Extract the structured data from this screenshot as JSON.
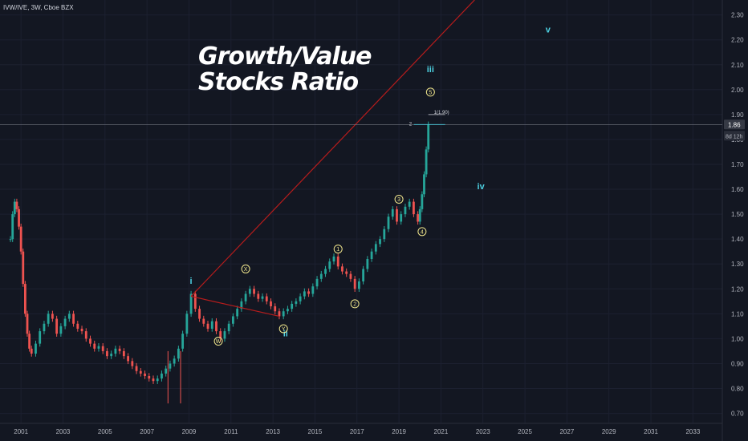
{
  "header": {
    "symbol_line": "IVW/IVE, 3W, Cboe BZX"
  },
  "title": {
    "line1": "Growth/Value",
    "line2": "Stocks Ratio"
  },
  "colors": {
    "background": "#131722",
    "up_candle": "#26a69a",
    "down_candle": "#ef5350",
    "trendline": "#b71c1c",
    "wave_label_cyan": "#4dd0e1",
    "wave_label_yellow": "#f0e68c",
    "grid": "#1c2030",
    "axis_text": "#b2b5be",
    "price_tag": "#363a45"
  },
  "chart_data": {
    "type": "candlestick",
    "title": "Growth/Value Stocks Ratio",
    "symbol": "IVW/IVE",
    "interval": "3W",
    "exchange": "Cboe BZX",
    "y_axis": {
      "ticks": [
        "2.30",
        "2.20",
        "2.10",
        "2.00",
        "1.90",
        "1.80",
        "1.70",
        "1.60",
        "1.50",
        "1.40",
        "1.30",
        "1.20",
        "1.10",
        "1.00",
        "0.90",
        "0.80",
        "0.70"
      ],
      "ylim": [
        0.66,
        2.36
      ],
      "current_price_label": "1.86",
      "countdown_label": "8d 12h"
    },
    "x_axis": {
      "ticks": [
        "2001",
        "2003",
        "2005",
        "2007",
        "2009",
        "2011",
        "2013",
        "2015",
        "2017",
        "2019",
        "2021",
        "2023",
        "2025",
        "2027",
        "2029",
        "2031",
        "2033"
      ],
      "xlim": [
        2000.0,
        2034.4
      ]
    },
    "price_path": [
      [
        2000.5,
        1.4
      ],
      [
        2000.6,
        1.5
      ],
      [
        2000.7,
        1.55
      ],
      [
        2000.8,
        1.52
      ],
      [
        2000.9,
        1.45
      ],
      [
        2001.0,
        1.35
      ],
      [
        2001.1,
        1.22
      ],
      [
        2001.2,
        1.1
      ],
      [
        2001.3,
        1.02
      ],
      [
        2001.4,
        0.96
      ],
      [
        2001.5,
        0.94
      ],
      [
        2001.7,
        0.98
      ],
      [
        2001.9,
        1.03
      ],
      [
        2002.1,
        1.06
      ],
      [
        2002.3,
        1.1
      ],
      [
        2002.5,
        1.08
      ],
      [
        2002.7,
        1.02
      ],
      [
        2002.9,
        1.05
      ],
      [
        2003.1,
        1.08
      ],
      [
        2003.3,
        1.1
      ],
      [
        2003.5,
        1.06
      ],
      [
        2003.7,
        1.04
      ],
      [
        2003.9,
        1.03
      ],
      [
        2004.1,
        1.0
      ],
      [
        2004.3,
        0.98
      ],
      [
        2004.5,
        0.96
      ],
      [
        2004.7,
        0.97
      ],
      [
        2004.9,
        0.95
      ],
      [
        2005.1,
        0.93
      ],
      [
        2005.3,
        0.94
      ],
      [
        2005.5,
        0.96
      ],
      [
        2005.7,
        0.95
      ],
      [
        2005.9,
        0.93
      ],
      [
        2006.1,
        0.91
      ],
      [
        2006.3,
        0.89
      ],
      [
        2006.5,
        0.87
      ],
      [
        2006.7,
        0.86
      ],
      [
        2006.9,
        0.85
      ],
      [
        2007.1,
        0.84
      ],
      [
        2007.3,
        0.83
      ],
      [
        2007.5,
        0.84
      ],
      [
        2007.7,
        0.86
      ],
      [
        2007.9,
        0.88
      ],
      [
        2008.1,
        0.9
      ],
      [
        2008.3,
        0.92
      ],
      [
        2008.5,
        0.96
      ],
      [
        2008.7,
        1.02
      ],
      [
        2008.9,
        1.1
      ],
      [
        2009.1,
        1.18
      ],
      [
        2009.3,
        1.12
      ],
      [
        2009.5,
        1.08
      ],
      [
        2009.7,
        1.06
      ],
      [
        2009.9,
        1.04
      ],
      [
        2010.1,
        1.07
      ],
      [
        2010.3,
        1.03
      ],
      [
        2010.5,
        1.0
      ],
      [
        2010.7,
        1.03
      ],
      [
        2010.9,
        1.06
      ],
      [
        2011.1,
        1.09
      ],
      [
        2011.3,
        1.12
      ],
      [
        2011.5,
        1.15
      ],
      [
        2011.7,
        1.18
      ],
      [
        2011.9,
        1.2
      ],
      [
        2012.1,
        1.18
      ],
      [
        2012.3,
        1.16
      ],
      [
        2012.5,
        1.17
      ],
      [
        2012.7,
        1.15
      ],
      [
        2012.9,
        1.13
      ],
      [
        2013.1,
        1.11
      ],
      [
        2013.3,
        1.09
      ],
      [
        2013.5,
        1.11
      ],
      [
        2013.7,
        1.12
      ],
      [
        2013.9,
        1.14
      ],
      [
        2014.1,
        1.15
      ],
      [
        2014.3,
        1.17
      ],
      [
        2014.5,
        1.19
      ],
      [
        2014.7,
        1.18
      ],
      [
        2014.9,
        1.21
      ],
      [
        2015.1,
        1.24
      ],
      [
        2015.3,
        1.26
      ],
      [
        2015.5,
        1.28
      ],
      [
        2015.7,
        1.31
      ],
      [
        2015.9,
        1.33
      ],
      [
        2016.1,
        1.29
      ],
      [
        2016.3,
        1.27
      ],
      [
        2016.5,
        1.26
      ],
      [
        2016.7,
        1.24
      ],
      [
        2016.9,
        1.2
      ],
      [
        2017.1,
        1.23
      ],
      [
        2017.3,
        1.28
      ],
      [
        2017.5,
        1.32
      ],
      [
        2017.7,
        1.35
      ],
      [
        2017.9,
        1.38
      ],
      [
        2018.1,
        1.4
      ],
      [
        2018.3,
        1.44
      ],
      [
        2018.5,
        1.49
      ],
      [
        2018.7,
        1.52
      ],
      [
        2018.9,
        1.47
      ],
      [
        2019.1,
        1.5
      ],
      [
        2019.3,
        1.53
      ],
      [
        2019.5,
        1.55
      ],
      [
        2019.7,
        1.5
      ],
      [
        2019.9,
        1.47
      ],
      [
        2020.0,
        1.52
      ],
      [
        2020.1,
        1.58
      ],
      [
        2020.2,
        1.66
      ],
      [
        2020.3,
        1.76
      ],
      [
        2020.4,
        1.86
      ]
    ],
    "trendlines": [
      {
        "from": [
          2009.1,
          1.17
        ],
        "to": [
          2022.6,
          2.36
        ]
      },
      {
        "from": [
          2009.1,
          1.17
        ],
        "to": [
          2013.3,
          1.09
        ]
      }
    ],
    "fib_level": {
      "label": "1(1.90)",
      "value": 1.9,
      "from_x": 2020.4,
      "to_x": 2021.2
    },
    "level_marker": {
      "label": "2",
      "value": 1.86
    },
    "wave_labels": [
      {
        "text": "i",
        "x": 2009.1,
        "y": 1.22,
        "style": "roman"
      },
      {
        "text": "ii",
        "x": 2013.6,
        "y": 1.01,
        "style": "roman"
      },
      {
        "text": "iii",
        "x": 2020.5,
        "y": 2.07,
        "style": "roman"
      },
      {
        "text": "iv",
        "x": 2022.9,
        "y": 1.6,
        "style": "roman"
      },
      {
        "text": "v",
        "x": 2026.1,
        "y": 2.23,
        "style": "roman"
      },
      {
        "text": "W",
        "x": 2010.4,
        "y": 0.99,
        "style": "circled"
      },
      {
        "text": "X",
        "x": 2011.7,
        "y": 1.28,
        "style": "circled"
      },
      {
        "text": "Y",
        "x": 2013.5,
        "y": 1.04,
        "style": "circled"
      },
      {
        "text": "1",
        "x": 2016.1,
        "y": 1.36,
        "style": "circled"
      },
      {
        "text": "2",
        "x": 2016.9,
        "y": 1.14,
        "style": "circled"
      },
      {
        "text": "3",
        "x": 2019.0,
        "y": 1.56,
        "style": "circled"
      },
      {
        "text": "4",
        "x": 2020.1,
        "y": 1.43,
        "style": "circled"
      },
      {
        "text": "5",
        "x": 2020.5,
        "y": 1.99,
        "style": "circled"
      }
    ]
  }
}
